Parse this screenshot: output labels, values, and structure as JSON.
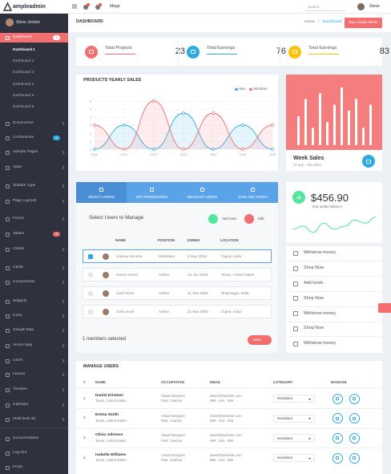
{
  "topbar": {
    "logo": "ampleadmin",
    "mega": "Mega",
    "search": "Search...",
    "user": "Steve"
  },
  "sidebar": {
    "user": "Steve Jection",
    "items": [
      {
        "label": "Dashboard",
        "badge": "4"
      },
      {
        "label": "Ecommerce"
      },
      {
        "label": "UI Elements",
        "badge": "5"
      },
      {
        "label": "Sample Pages"
      },
      {
        "label": "Apps"
      },
      {
        "label": "Sidebar Type"
      },
      {
        "label": "Page Layouts"
      },
      {
        "label": "Forms"
      },
      {
        "label": "Tables",
        "badge": "2"
      },
      {
        "label": "Charts"
      },
      {
        "label": "Cards"
      },
      {
        "label": "Components"
      },
      {
        "label": "Widgets"
      },
      {
        "label": "Icons"
      },
      {
        "label": "Google Map"
      },
      {
        "label": "Vector Map"
      },
      {
        "label": "Users"
      },
      {
        "label": "Invoice"
      },
      {
        "label": "Timeline"
      },
      {
        "label": "Calendar"
      },
      {
        "label": "Multi level dd"
      },
      {
        "label": "Documentation"
      },
      {
        "label": "Log Out"
      },
      {
        "label": "FAQs"
      }
    ],
    "submenu": [
      "Dashboard 1",
      "Dashboard 2",
      "Dashboard 3",
      "Dashboard 4",
      "Dashboard 5",
      "Dashboard 6"
    ]
  },
  "header": {
    "title": "DASHBOARD",
    "breadcrumb": [
      "Home",
      "/",
      "Dashboard"
    ],
    "button": "Buy Ample Admin"
  },
  "stats": [
    {
      "label": "Total Projects",
      "value": "23"
    },
    {
      "label": "Total Earnings",
      "value": "76"
    },
    {
      "label": "Total Earnings",
      "value": "83"
    }
  ],
  "sales_chart": {
    "type": "line",
    "title": "PRODUCTS YEARLY SALES",
    "categories": [
      "2010",
      "2011",
      "2012",
      "2013",
      "2014",
      "2015",
      "2016"
    ],
    "series": [
      {
        "name": "Mac",
        "color": "#2cabe3",
        "values": [
          0,
          3,
          0,
          4.5,
          0,
          3,
          0
        ]
      },
      {
        "name": "Windows",
        "color": "#f36f73",
        "values": [
          3,
          0,
          6,
          0,
          4.5,
          0,
          3
        ]
      }
    ],
    "ylim": [
      0,
      6
    ],
    "yticks": [
      0,
      1,
      2,
      3,
      4,
      5,
      6
    ],
    "grid": true
  },
  "week_sales": {
    "title": "Week Sales",
    "subtitle": "for app - 150 sales",
    "type": "bar",
    "values": [
      5,
      8,
      3,
      9,
      4,
      7,
      10,
      6,
      8,
      3,
      7
    ],
    "ylim": [
      0,
      10
    ]
  },
  "wizard": {
    "tabs": [
      "SELECT USERS",
      "SET PERMISSIONS",
      "MESSAGE USERS",
      "SAVE AND FINISH"
    ],
    "heading": "Select Users to Manage",
    "add": "Add User",
    "edit": "Edit",
    "columns": [
      "NAME",
      "POSITION",
      "JOINED",
      "LOCATION"
    ],
    "rows": [
      [
        "Andrew Simons",
        "Modulator",
        "6 May 2016",
        "Gujrat, India"
      ],
      [
        "Hanna Gover",
        "Admin",
        "13 Jan 2005",
        "Texas, United states"
      ],
      [
        "Joshi Nirav",
        "Admin",
        "21 Mar 2001",
        "Bhavnagar, India"
      ],
      [
        "Joshi Sunil",
        "Admin",
        "21 Mar 2004",
        "Gujrat, India"
      ]
    ],
    "selected": "1 members selected",
    "next": "Next"
  },
  "wallet": {
    "amount": "$456.90",
    "caption": "Your wallet balance",
    "type": "line",
    "values": [
      3,
      4,
      2,
      5,
      3,
      4,
      6,
      5,
      7
    ],
    "ylim": [
      0,
      8
    ]
  },
  "actions": [
    "Withdrow money",
    "Shop Now",
    "Add funds",
    "Shop Now",
    "Withdrow money",
    "Shop Now",
    "Withdrow money"
  ],
  "manage": {
    "title": "MANAGE USERS",
    "columns": [
      "#",
      "NAME",
      "OCCUPATION",
      "EMAIL",
      "CATEGORY",
      "MANAGE"
    ],
    "rows": [
      {
        "num": "1",
        "name": "Daniel Kristeen",
        "location": "Texas, United states",
        "occupation": "Visual Designer",
        "past": "Past : teacher",
        "email": "daniel@website.com",
        "phone": "999 - 444 - 555",
        "category": "Modulator"
      },
      {
        "num": "2",
        "name": "Emma Smith",
        "location": "Texas, United states",
        "occupation": "Visual Designer",
        "past": "Past : teacher",
        "email": "daniel@website.com",
        "phone": "999 - 444 - 555",
        "category": "Modulator"
      },
      {
        "num": "3",
        "name": "Olivia Johnson",
        "location": "Texas, United states",
        "occupation": "Visual Designer",
        "past": "Past : teacher",
        "email": "daniel@website.com",
        "phone": "999 - 444 - 555",
        "category": "Modulator"
      },
      {
        "num": "4",
        "name": "Isabella Williams",
        "location": "Texas, United states",
        "occupation": "Visual Designer",
        "past": "Past : teacher",
        "email": "daniel@website.com",
        "phone": "999 - 444 - 555",
        "category": "Modulator"
      }
    ]
  }
}
